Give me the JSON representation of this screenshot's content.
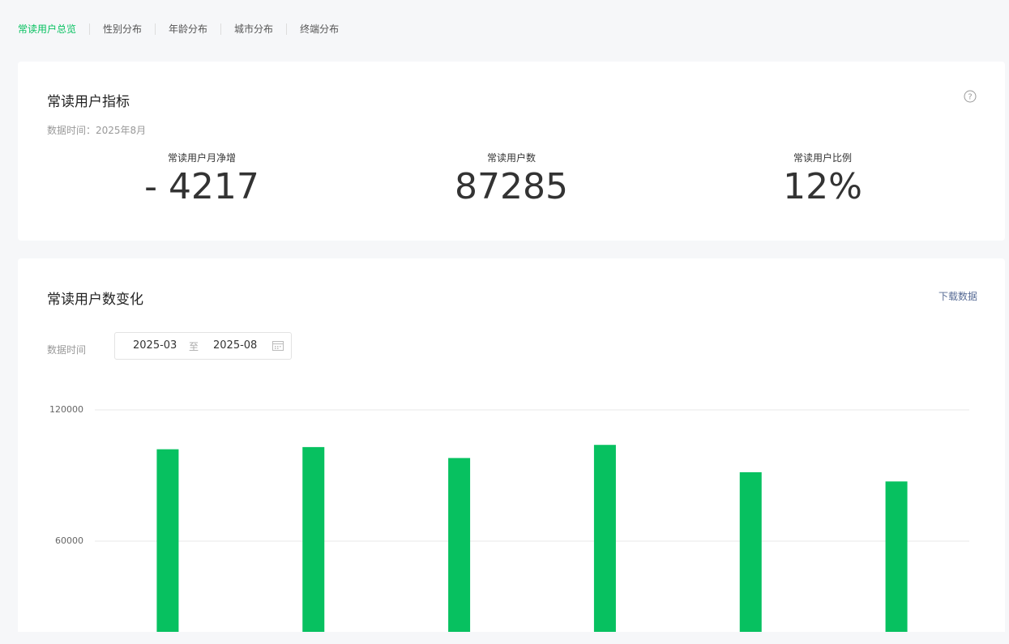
{
  "tabs": [
    "常读用户总览",
    "性别分布",
    "年龄分布",
    "城市分布",
    "终端分布"
  ],
  "metrics_card": {
    "title": "常读用户指标",
    "data_time": "数据时间：2025年8月",
    "metrics": [
      {
        "label": "常读用户月净增",
        "value": "- 4217"
      },
      {
        "label": "常读用户数",
        "value": "87285"
      },
      {
        "label": "常读用户比例",
        "value": "12%"
      }
    ]
  },
  "trend_card": {
    "title": "常读用户数变化",
    "download": "下载数据",
    "date_label": "数据时间",
    "date_start": "2025-03",
    "date_sep": "至",
    "date_end": "2025-08"
  },
  "chart_data": {
    "type": "bar",
    "categories": [
      null,
      null,
      null,
      null,
      null,
      null
    ],
    "values": [
      102000,
      103000,
      98000,
      104000,
      91500,
      87285
    ],
    "color": "#07c160",
    "ylim": [
      0,
      120000
    ],
    "yticks": [
      60000,
      120000
    ],
    "grid": true
  }
}
